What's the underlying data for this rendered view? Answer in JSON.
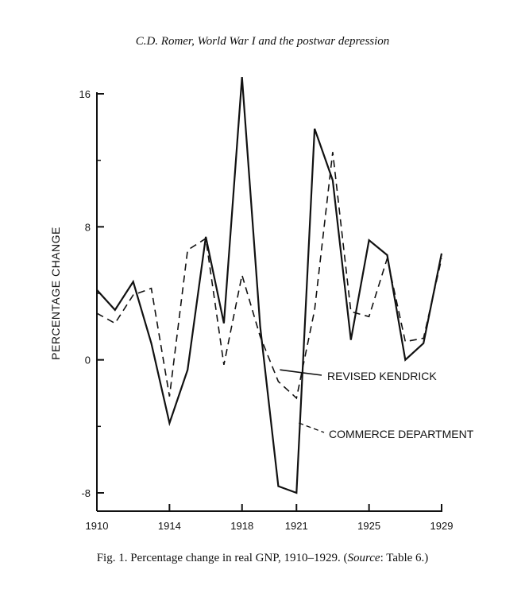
{
  "header": "C.D. Romer, World War I and the postwar depression",
  "caption": {
    "prefix": "Fig. 1.  Percentage change in real GNP, 1910–1929. (",
    "source_word": "Source",
    "suffix": ": Table 6.)"
  },
  "chart_data": {
    "type": "line",
    "title": "",
    "ylabel": "PERCENTAGE CHANGE",
    "xlabel": "",
    "xlim": [
      1910,
      1929
    ],
    "ylim": [
      -9,
      17
    ],
    "x_ticks": [
      1910,
      1914,
      1918,
      1921,
      1925,
      1929
    ],
    "y_ticks": [
      -8,
      0,
      8,
      16
    ],
    "grid": false,
    "x": [
      1910,
      1911,
      1912,
      1913,
      1914,
      1915,
      1916,
      1917,
      1918,
      1919,
      1920,
      1921,
      1922,
      1923,
      1924,
      1925,
      1926,
      1927,
      1928,
      1929
    ],
    "series": [
      {
        "name": "REVISED KENDRICK",
        "style": "solid",
        "color": "#111111",
        "values": [
          4.2,
          3.0,
          4.7,
          1.0,
          -3.8,
          -0.6,
          7.4,
          2.2,
          17.0,
          2.0,
          -7.6,
          -8.0,
          13.9,
          10.8,
          1.2,
          7.2,
          6.3,
          0.0,
          1.0,
          6.4
        ]
      },
      {
        "name": "COMMERCE DEPARTMENT",
        "style": "dashed",
        "color": "#111111",
        "values": [
          2.8,
          2.2,
          3.9,
          4.3,
          -2.2,
          6.6,
          7.3,
          -0.3,
          5.1,
          1.4,
          -1.3,
          -2.3,
          3.0,
          12.5,
          2.9,
          2.6,
          6.1,
          1.1,
          1.3,
          6.1
        ]
      }
    ],
    "annotations": [
      {
        "text": "REVISED KENDRICK",
        "series": 0
      },
      {
        "text": "COMMERCE DEPARTMENT",
        "series": 1
      }
    ]
  }
}
